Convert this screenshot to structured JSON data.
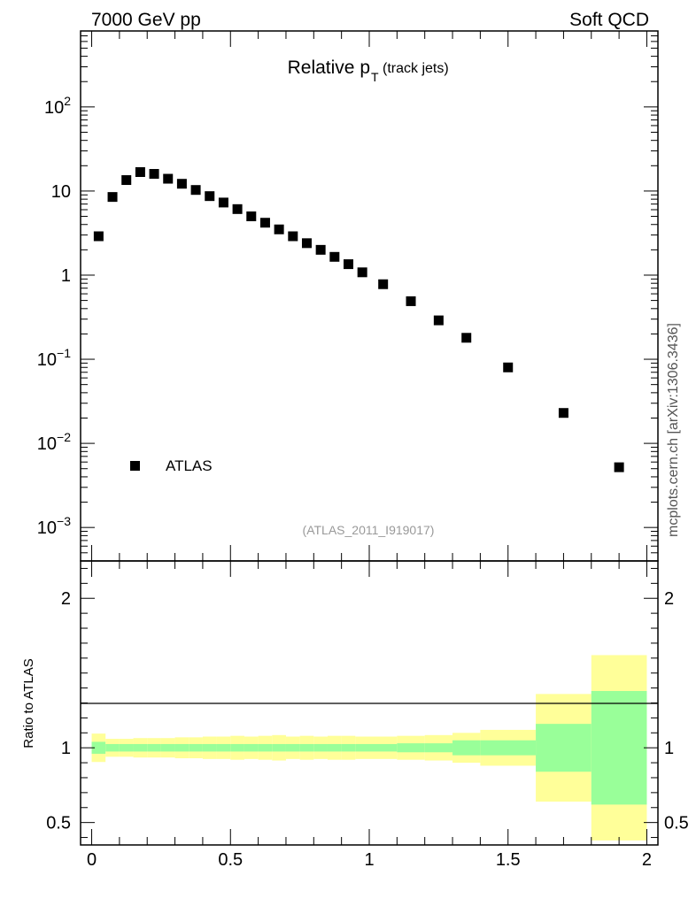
{
  "header": {
    "left": "7000 GeV pp",
    "right": "Soft QCD"
  },
  "side_label": "mcplots.cern.ch [arXiv:1306.3436]",
  "analysis_id": "(ATLAS_2011_I919017)",
  "chart_data": [
    {
      "type": "scatter",
      "title": "Relative p",
      "title_sub": "T",
      "title_suffix": "(track jets)",
      "y_scale": "log",
      "xlim": [
        -0.04,
        2.04
      ],
      "ylim": [
        0.0004,
        800
      ],
      "y_ticks": [
        {
          "value": 0.001,
          "base": "10",
          "exp": "−3"
        },
        {
          "value": 0.01,
          "base": "10",
          "exp": "−2"
        },
        {
          "value": 0.1,
          "base": "10",
          "exp": "−1"
        },
        {
          "value": 1,
          "base": "1",
          "exp": ""
        },
        {
          "value": 10,
          "base": "10",
          "exp": ""
        },
        {
          "value": 100,
          "base": "10",
          "exp": "2"
        }
      ],
      "legend": {
        "label": "ATLAS",
        "placement": "bottom-left"
      },
      "series": [
        {
          "name": "ATLAS",
          "color": "#000000",
          "x": [
            0.025,
            0.075,
            0.125,
            0.175,
            0.225,
            0.275,
            0.325,
            0.375,
            0.425,
            0.475,
            0.525,
            0.575,
            0.625,
            0.675,
            0.725,
            0.775,
            0.825,
            0.875,
            0.925,
            0.975,
            1.05,
            1.15,
            1.25,
            1.35,
            1.5,
            1.7,
            1.9
          ],
          "y": [
            2.9,
            8.5,
            13.5,
            16.8,
            16.0,
            14.0,
            12.2,
            10.3,
            8.7,
            7.3,
            6.1,
            5.0,
            4.2,
            3.5,
            2.9,
            2.4,
            2.0,
            1.65,
            1.35,
            1.08,
            0.78,
            0.49,
            0.29,
            0.18,
            0.08,
            0.023,
            0.0052
          ]
        }
      ]
    },
    {
      "type": "area",
      "ylabel": "Ratio to ATLAS",
      "xlim": [
        -0.04,
        2.04
      ],
      "ylim": [
        0.35,
        2.25
      ],
      "x_ticks": [
        "0",
        "0.5",
        "1",
        "1.5",
        "2"
      ],
      "y_ticks": [
        "0.5",
        "1",
        "2"
      ],
      "reference_line": 1,
      "colors": {
        "stat": "#99ff99",
        "total": "#ffff99"
      },
      "bins": {
        "edges": [
          0.0,
          0.05,
          0.1,
          0.15,
          0.2,
          0.25,
          0.3,
          0.35,
          0.4,
          0.45,
          0.5,
          0.55,
          0.6,
          0.65,
          0.7,
          0.75,
          0.8,
          0.85,
          0.9,
          0.95,
          1.0,
          1.1,
          1.2,
          1.3,
          1.4,
          1.6,
          1.8,
          2.0
        ],
        "stat": [
          0.04,
          0.025,
          0.025,
          0.025,
          0.025,
          0.025,
          0.025,
          0.025,
          0.025,
          0.025,
          0.025,
          0.025,
          0.025,
          0.025,
          0.025,
          0.025,
          0.025,
          0.025,
          0.025,
          0.025,
          0.025,
          0.03,
          0.03,
          0.05,
          0.05,
          0.16,
          0.38
        ],
        "total": [
          0.095,
          0.06,
          0.06,
          0.065,
          0.065,
          0.065,
          0.07,
          0.07,
          0.075,
          0.075,
          0.08,
          0.075,
          0.08,
          0.085,
          0.075,
          0.08,
          0.075,
          0.08,
          0.08,
          0.075,
          0.075,
          0.08,
          0.085,
          0.1,
          0.12,
          0.36,
          0.62
        ]
      }
    }
  ]
}
